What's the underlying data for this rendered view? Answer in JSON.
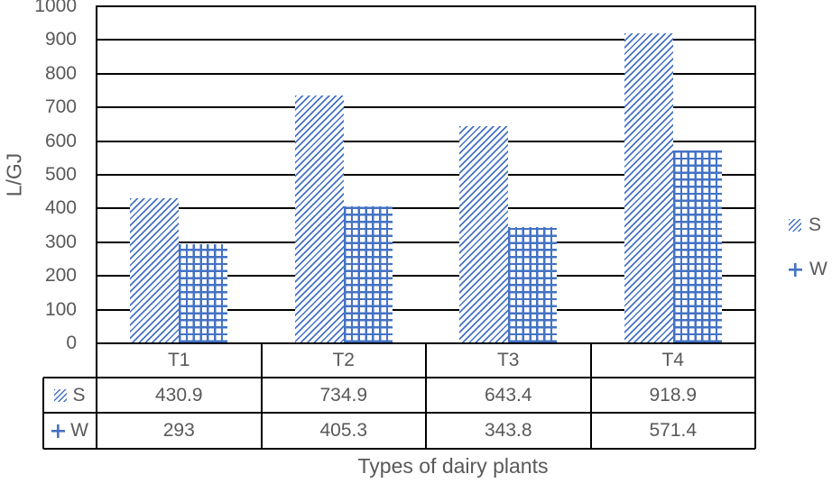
{
  "chart_data": {
    "type": "bar",
    "title": "",
    "xlabel": "Types of dairy plants",
    "ylabel": "L/GJ",
    "categories": [
      "T1",
      "T2",
      "T3",
      "T4"
    ],
    "series": [
      {
        "name": "S",
        "pattern": "diagonal-hatch",
        "values": [
          430.9,
          734.9,
          643.4,
          918.9
        ]
      },
      {
        "name": "W",
        "pattern": "cross-hatch",
        "values": [
          293,
          405.3,
          343.8,
          571.4
        ]
      }
    ],
    "ylim": [
      0,
      1000
    ],
    "ytick_step": 100,
    "yticks": [
      0,
      100,
      200,
      300,
      400,
      500,
      600,
      700,
      800,
      900,
      1000
    ],
    "grid": true,
    "legend_position": "right",
    "data_table_visible": true,
    "colors": {
      "bar": "#4472C4",
      "axis_text": "#595959",
      "grid_line": "#000000",
      "background": "#ffffff"
    }
  }
}
